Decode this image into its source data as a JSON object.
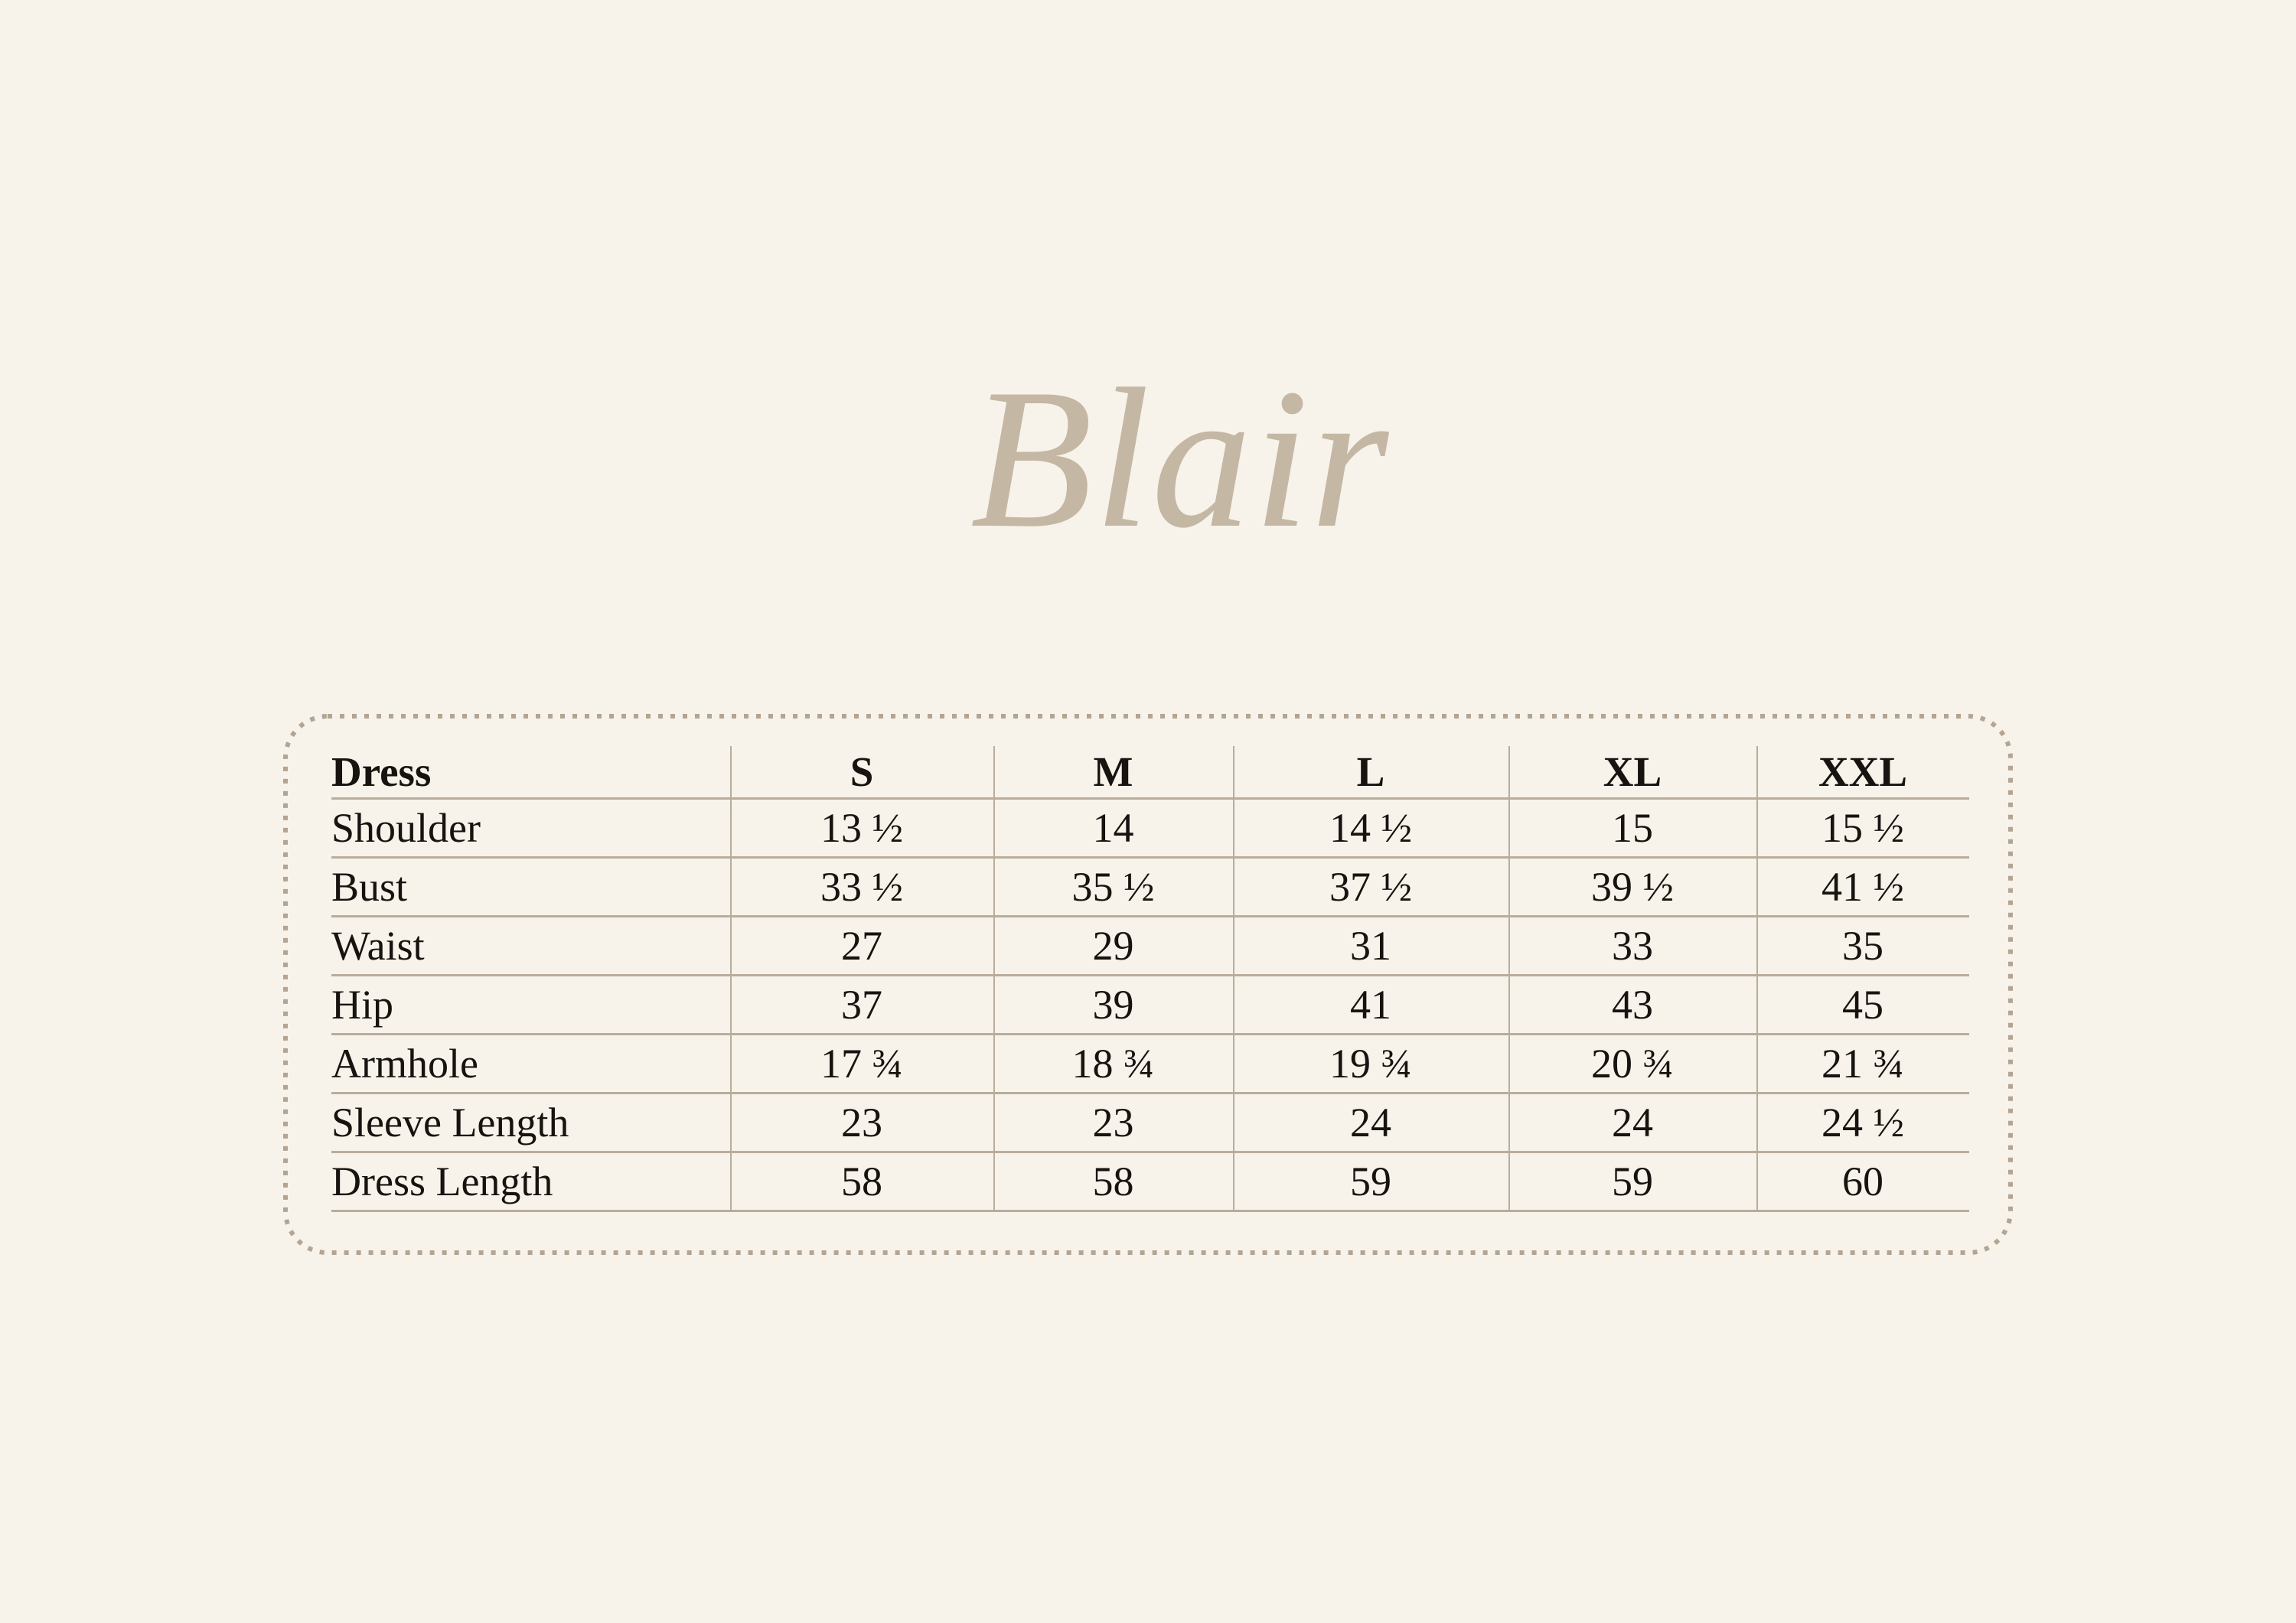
{
  "page": {
    "background_color": "#f7f3ea",
    "text_color": "#161310",
    "logo_color": "#c4b7a4",
    "dotted_border_color": "#b3a493",
    "table_line_color": "#b9ac9b"
  },
  "logo": {
    "text": "Blair"
  },
  "chart_data": {
    "type": "table",
    "title": "Blair",
    "columns": [
      "Dress",
      "S",
      "M",
      "L",
      "XL",
      "XXL"
    ],
    "rows": [
      {
        "label": "Shoulder",
        "values": [
          "13 ½",
          "14",
          "14 ½",
          "15",
          "15 ½"
        ]
      },
      {
        "label": "Bust",
        "values": [
          "33 ½",
          "35 ½",
          "37 ½",
          "39 ½",
          "41 ½"
        ]
      },
      {
        "label": "Waist",
        "values": [
          "27",
          "29",
          "31",
          "33",
          "35"
        ]
      },
      {
        "label": "Hip",
        "values": [
          "37",
          "39",
          "41",
          "43",
          "45"
        ]
      },
      {
        "label": "Armhole",
        "values": [
          "17 ¾",
          "18 ¾",
          "19 ¾",
          "20 ¾",
          "21 ¾"
        ]
      },
      {
        "label": "Sleeve Length",
        "values": [
          "23",
          "23",
          "24",
          "24",
          "24 ½"
        ]
      },
      {
        "label": "Dress Length",
        "values": [
          "58",
          "58",
          "59",
          "59",
          "60"
        ]
      }
    ]
  }
}
